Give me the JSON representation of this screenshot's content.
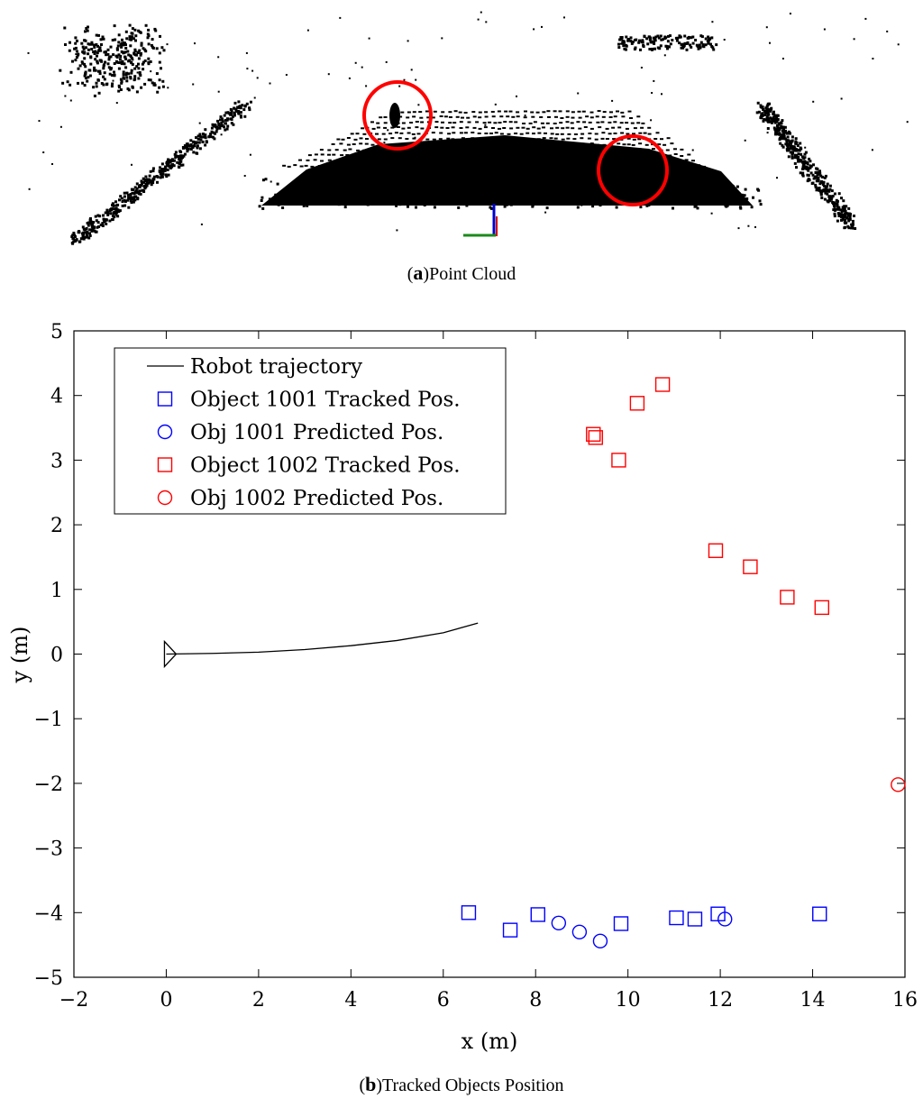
{
  "captions": {
    "a_letter": "a",
    "a_text": "Point Cloud",
    "b_letter": "b",
    "b_text": "Tracked Objects Position"
  },
  "chart_data": {
    "type": "scatter",
    "xlabel": "x (m)",
    "ylabel": "y (m)",
    "xlim": [
      -2,
      16
    ],
    "ylim": [
      -5,
      5
    ],
    "xticks": [
      -2,
      0,
      2,
      4,
      6,
      8,
      10,
      12,
      14,
      16
    ],
    "yticks": [
      -5,
      -4,
      -3,
      -2,
      -1,
      0,
      1,
      2,
      3,
      4,
      5
    ],
    "legend_position": "top-left",
    "series": [
      {
        "name": "Robot trajectory",
        "kind": "line",
        "color": "#000000",
        "x": [
          0,
          1,
          2,
          3,
          4,
          5,
          6,
          6.75
        ],
        "y": [
          0,
          0.01,
          0.03,
          0.07,
          0.13,
          0.21,
          0.33,
          0.48
        ]
      },
      {
        "name": "Object 1001 Tracked Pos.",
        "kind": "square",
        "color": "#0000ff",
        "x": [
          6.55,
          7.45,
          8.05,
          9.85,
          11.05,
          11.45,
          11.95,
          14.15
        ],
        "y": [
          -4.0,
          -4.27,
          -4.03,
          -4.17,
          -4.08,
          -4.1,
          -4.02,
          -4.02
        ]
      },
      {
        "name": "Obj 1001 Predicted Pos.",
        "kind": "circle",
        "color": "#0000ff",
        "x": [
          8.5,
          8.95,
          9.4,
          12.1
        ],
        "y": [
          -4.16,
          -4.3,
          -4.44,
          -4.1
        ]
      },
      {
        "name": "Object 1002 Tracked Pos.",
        "kind": "square",
        "color": "#ff0000",
        "x": [
          9.25,
          9.3,
          9.8,
          10.2,
          10.75,
          11.9,
          12.65,
          13.45,
          14.2
        ],
        "y": [
          3.4,
          3.35,
          3.0,
          3.88,
          4.17,
          1.6,
          1.35,
          0.88,
          0.72
        ]
      },
      {
        "name": "Obj 1002 Predicted Pos.",
        "kind": "circle",
        "color": "#ff0000",
        "x": [
          15.85
        ],
        "y": [
          -2.02
        ]
      }
    ],
    "robot_marker": {
      "x": 0,
      "y": 0,
      "color": "#000000"
    },
    "highlight_color": "#ff0000",
    "point_cloud_axis_colors": [
      "#1a8a1a",
      "#0000cc",
      "#cc0000"
    ]
  }
}
